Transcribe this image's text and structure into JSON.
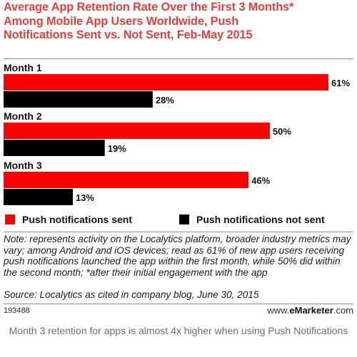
{
  "chart_data": {
    "type": "bar",
    "orientation": "horizontal",
    "title": "Average App Retention Rate Over the First 3 Months* Among Mobile App Users Worldwide, Push Notifications Sent vs. Not Sent, Feb-May 2015",
    "categories": [
      "Month 1",
      "Month 2",
      "Month 3"
    ],
    "series": [
      {
        "name": "Push notifications sent",
        "values": [
          61,
          50,
          46
        ],
        "labels": [
          "61%",
          "50%",
          "46%"
        ],
        "color": "#ff0000"
      },
      {
        "name": "Push notifications not sent",
        "values": [
          28,
          19,
          13
        ],
        "labels": [
          "28%",
          "19%",
          "13%"
        ],
        "color": "#000000"
      }
    ],
    "xlim": [
      0,
      61
    ],
    "grid": false,
    "legend_position": "bottom"
  },
  "title_lines": [
    "Average App Retention Rate Over the First 3 Months*",
    "Among Mobile App Users Worldwide, Push",
    "Notifications Sent vs. Not Sent, Feb-May 2015"
  ],
  "note": "Note: represents activity on the Localytics platform, broader industry metrics may vary; among Android and iOS devices; read as 61% of new app users receiving push notifications launched the app within the first month, while 50% did within the second month; *after their initial engagement with the app",
  "source": "Source: Localytics as cited in company blog, June 30, 2015",
  "chart_id": "193488",
  "brand": {
    "prefix": "www.",
    "name": "eMarketer",
    "suffix": ".com"
  },
  "caption": "Month 3 retention for apps is almost 4x higher when using Push Notifications"
}
